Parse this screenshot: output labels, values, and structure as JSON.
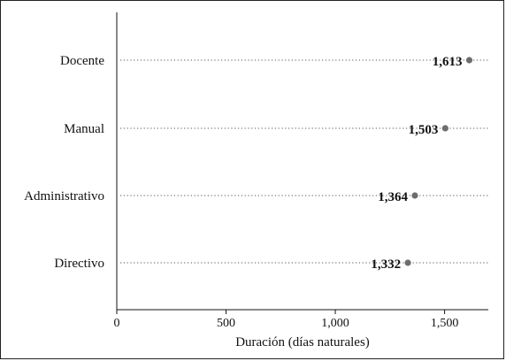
{
  "chart_data": {
    "type": "dot",
    "categories": [
      "Docente",
      "Manual",
      "Administrativo",
      "Directivo"
    ],
    "values": [
      1613,
      1503,
      1364,
      1332
    ],
    "value_labels": [
      "1,613",
      "1,503",
      "1,364",
      "1,332"
    ],
    "title": "",
    "xlabel": "Duración (días naturales)",
    "ylabel": "",
    "xlim": [
      0,
      1700
    ],
    "xticks": [
      0,
      500,
      1000,
      1500
    ],
    "xtick_labels": [
      "0",
      "500",
      "1,000",
      "1,500"
    ],
    "grid": false,
    "legend": "none",
    "colors": {
      "dot": "#6d6d6d",
      "leader": "#555555",
      "axis": "#111111"
    }
  }
}
